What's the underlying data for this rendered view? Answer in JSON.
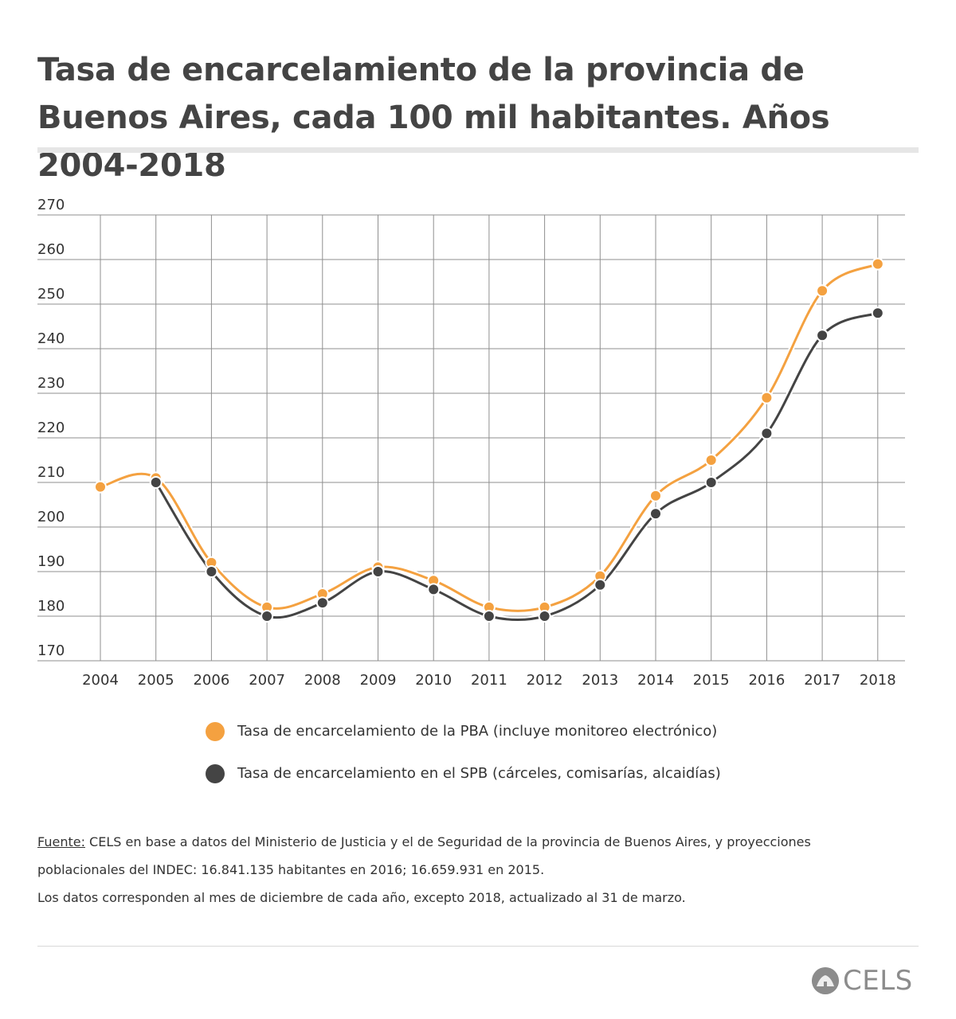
{
  "title": "Tasa de encarcelamiento de la provincia de Buenos Aires, cada 100 mil habitantes.  Años 2004-2018",
  "colors": {
    "pba": "#f4a140",
    "spb": "#444444",
    "grid": "#8f8f8f",
    "text": "#333333"
  },
  "chart_data": {
    "type": "line",
    "title": "",
    "xlabel": "",
    "ylabel": "",
    "categories": [
      "2004",
      "2005",
      "2006",
      "2007",
      "2008",
      "2009",
      "2010",
      "2011",
      "2012",
      "2013",
      "2014",
      "2015",
      "2016",
      "2017",
      "2018"
    ],
    "yticks": [
      "270",
      "260",
      "250",
      "240",
      "230",
      "220",
      "210",
      "200",
      "190",
      "180",
      "170"
    ],
    "ylim": [
      170,
      270
    ],
    "grid": true,
    "legend_position": "bottom",
    "series": [
      {
        "name": "Tasa de encarcelamiento de la PBA (incluye monitoreo electrónico)",
        "color": "#f4a140",
        "values": [
          209,
          211,
          192,
          182,
          185,
          191,
          188,
          182,
          182,
          189,
          207,
          215,
          229,
          253,
          259
        ]
      },
      {
        "name": "Tasa de encarcelamiento en el SPB (cárceles, comisarías, alcaidías)",
        "color": "#444444",
        "values": [
          null,
          210,
          190,
          180,
          183,
          190,
          186,
          180,
          180,
          187,
          203,
          210,
          221,
          243,
          248
        ]
      }
    ]
  },
  "source": {
    "label": "Fuente:",
    "line1": " CELS en base a datos del Ministerio de Justicia y el de Seguridad de la provincia de Buenos Aires, y proyecciones",
    "line2": "poblacionales del INDEC: 16.841.135 habitantes en 2016; 16.659.931 en 2015.",
    "line3": "Los datos corresponden al mes de diciembre de cada año, excepto 2018, actualizado al 31 de marzo."
  },
  "logo": {
    "text": "CELS",
    "icon": "cels-logo-icon"
  }
}
